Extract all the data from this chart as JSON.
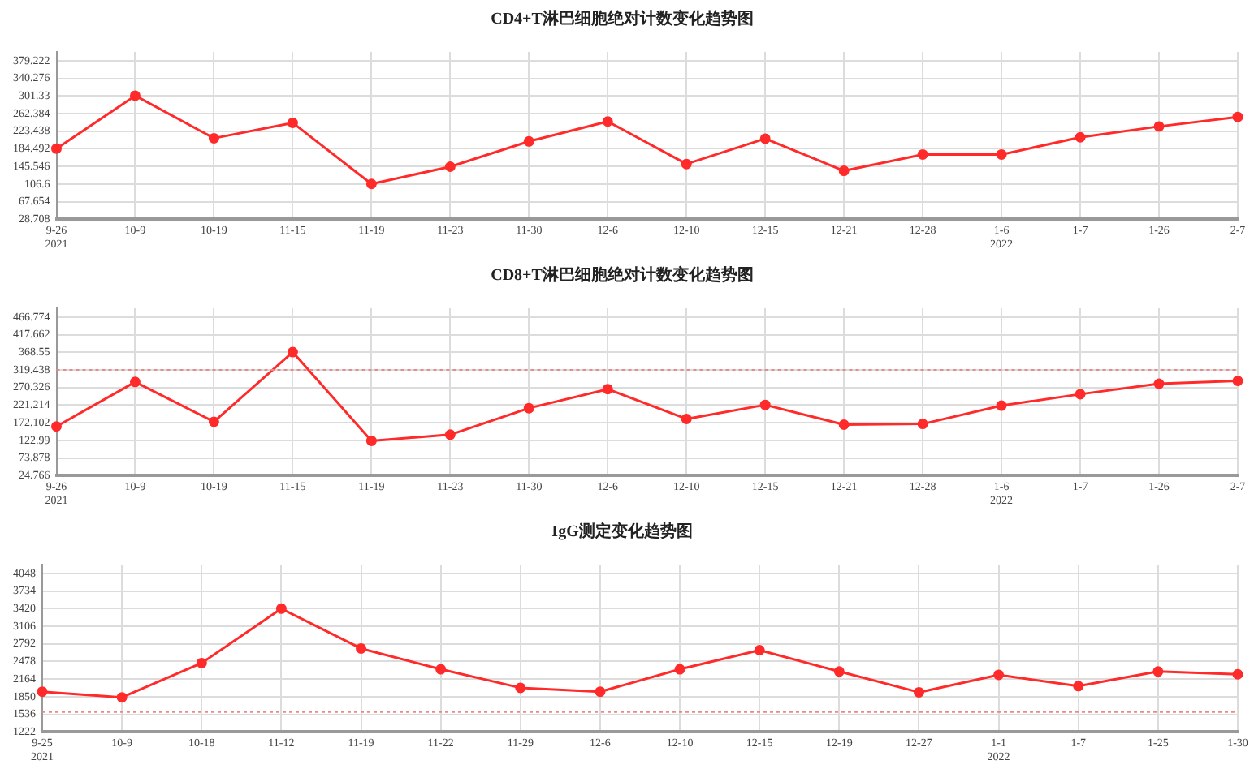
{
  "chart_data": [
    {
      "type": "line",
      "title": "CD4+T淋巴细胞绝对计数变化趋势图",
      "categories": [
        "9-26\n2021",
        "10-9",
        "10-19",
        "11-15",
        "11-19",
        "11-23",
        "11-30",
        "12-6",
        "12-10",
        "12-15",
        "12-21",
        "12-28",
        "1-6\n2022",
        "1-7",
        "1-26",
        "2-7"
      ],
      "series": [
        {
          "color": "#ff2a2a",
          "values": [
            185,
            302,
            208,
            242,
            107,
            145,
            201,
            245,
            151,
            207,
            136,
            172,
            172,
            210,
            234,
            255
          ]
        }
      ],
      "ylim": [
        28.708,
        398.695
      ],
      "yticks": [
        28.708,
        67.654,
        106.6,
        145.546,
        184.492,
        223.438,
        262.384,
        301.33,
        340.276,
        379.222
      ],
      "grid": true,
      "legend": false,
      "marker": "circle",
      "line_style": "solid"
    },
    {
      "type": "line",
      "title": "CD8+T淋巴细胞绝对计数变化趋势图",
      "categories": [
        "9-26\n2021",
        "10-9",
        "10-19",
        "11-15",
        "11-19",
        "11-23",
        "11-30",
        "12-6",
        "12-10",
        "12-15",
        "12-21",
        "12-28",
        "1-6\n2022",
        "1-7",
        "1-26",
        "2-7"
      ],
      "series": [
        {
          "color": "#ff2a2a",
          "values": [
            162,
            286,
            175,
            369,
            122,
            139,
            213,
            266,
            183,
            222,
            167,
            169,
            220,
            252,
            281,
            289
          ]
        }
      ],
      "ylim": [
        24.766,
        491.33
      ],
      "yticks": [
        24.766,
        73.878,
        122.99,
        172.102,
        221.214,
        270.326,
        319.438,
        368.55,
        417.662,
        466.774
      ],
      "grid": true,
      "legend": false,
      "marker": "circle",
      "line_style": "solid",
      "ref_lines": [
        {
          "axis": "y",
          "value": 319.438,
          "color": "#e88a8a",
          "line_style": "dotted"
        }
      ]
    },
    {
      "type": "line",
      "title": "IgG测定变化趋势图",
      "categories": [
        "9-25\n2021",
        "10-9",
        "10-18",
        "11-12",
        "11-19",
        "11-22",
        "11-29",
        "12-6",
        "12-10",
        "12-15",
        "12-19",
        "12-27",
        "1-1\n2022",
        "1-7",
        "1-25",
        "1-30"
      ],
      "series": [
        {
          "color": "#ff2a2a",
          "values": [
            1940,
            1840,
            2450,
            3420,
            2710,
            2340,
            2010,
            1940,
            2340,
            2680,
            2300,
            1930,
            2240,
            2040,
            2300,
            2250
          ]
        }
      ],
      "ylim": [
        1222,
        4205
      ],
      "yticks": [
        1222,
        1536,
        1850,
        2164,
        2478,
        2792,
        3106,
        3420,
        3734,
        4048
      ],
      "grid": true,
      "legend": false,
      "marker": "circle",
      "line_style": "solid",
      "ref_lines": [
        {
          "axis": "y",
          "value": 1580,
          "color": "#e88a8a",
          "line_style": "dotted"
        }
      ]
    }
  ]
}
